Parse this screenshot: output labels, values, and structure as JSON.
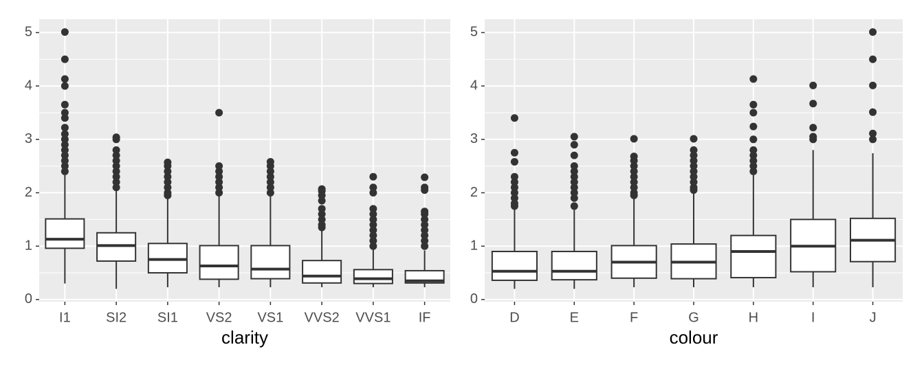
{
  "chart_data": [
    {
      "type": "box",
      "xlabel": "clarity",
      "grid": true,
      "color": "#333333",
      "fill": "#ffffff",
      "ylim": [
        -0.04,
        5.25
      ],
      "yticks": [
        0,
        1,
        2,
        3,
        4,
        5
      ],
      "categories": [
        "I1",
        "SI2",
        "SI1",
        "VS2",
        "VS1",
        "VVS2",
        "VVS1",
        "IF"
      ],
      "boxes": [
        {
          "low": 0.3,
          "q1": 0.96,
          "median": 1.13,
          "q3": 1.51,
          "high": 2.33,
          "outliers": [
            2.4,
            2.5,
            2.6,
            2.7,
            2.8,
            2.9,
            3.0,
            3.1,
            3.22,
            3.4,
            3.5,
            3.65,
            4.0,
            4.13,
            4.5,
            5.01
          ]
        },
        {
          "low": 0.2,
          "q1": 0.72,
          "median": 1.01,
          "q3": 1.25,
          "high": 2.08,
          "outliers": [
            2.1,
            2.2,
            2.3,
            2.4,
            2.5,
            2.6,
            2.7,
            2.8,
            3.0,
            3.04
          ]
        },
        {
          "low": 0.23,
          "q1": 0.5,
          "median": 0.75,
          "q3": 1.05,
          "high": 1.9,
          "outliers": [
            1.95,
            2.0,
            2.1,
            2.2,
            2.3,
            2.4,
            2.5,
            2.57
          ]
        },
        {
          "low": 0.23,
          "q1": 0.38,
          "median": 0.63,
          "q3": 1.01,
          "high": 1.98,
          "outliers": [
            2.0,
            2.1,
            2.2,
            2.3,
            2.4,
            2.5,
            3.5
          ]
        },
        {
          "low": 0.23,
          "q1": 0.39,
          "median": 0.57,
          "q3": 1.01,
          "high": 1.95,
          "outliers": [
            2.0,
            2.1,
            2.2,
            2.3,
            2.4,
            2.5,
            2.58
          ]
        },
        {
          "low": 0.23,
          "q1": 0.31,
          "median": 0.44,
          "q3": 0.73,
          "high": 1.3,
          "outliers": [
            1.35,
            1.4,
            1.5,
            1.6,
            1.7,
            1.85,
            1.95,
            2.03,
            2.07
          ]
        },
        {
          "low": 0.23,
          "q1": 0.3,
          "median": 0.39,
          "q3": 0.56,
          "high": 0.94,
          "outliers": [
            1.0,
            1.1,
            1.2,
            1.3,
            1.4,
            1.5,
            1.6,
            1.7,
            2.0,
            2.1,
            2.3
          ]
        },
        {
          "low": 0.23,
          "q1": 0.31,
          "median": 0.35,
          "q3": 0.54,
          "high": 0.92,
          "outliers": [
            1.0,
            1.1,
            1.2,
            1.3,
            1.4,
            1.5,
            1.6,
            1.65,
            2.05,
            2.1,
            2.29
          ]
        }
      ]
    },
    {
      "type": "box",
      "xlabel": "colour",
      "grid": true,
      "color": "#333333",
      "fill": "#ffffff",
      "ylim": [
        -0.04,
        5.25
      ],
      "yticks": [
        0,
        1,
        2,
        3,
        4,
        5
      ],
      "categories": [
        "D",
        "E",
        "F",
        "G",
        "H",
        "I",
        "J"
      ],
      "boxes": [
        {
          "low": 0.2,
          "q1": 0.36,
          "median": 0.53,
          "q3": 0.9,
          "high": 1.7,
          "outliers": [
            1.75,
            1.8,
            1.9,
            2.0,
            2.1,
            2.2,
            2.3,
            2.58,
            2.75,
            3.4
          ]
        },
        {
          "low": 0.2,
          "q1": 0.37,
          "median": 0.53,
          "q3": 0.9,
          "high": 1.68,
          "outliers": [
            1.75,
            1.9,
            2.0,
            2.1,
            2.2,
            2.3,
            2.4,
            2.5,
            2.7,
            2.9,
            3.05
          ]
        },
        {
          "low": 0.23,
          "q1": 0.4,
          "median": 0.7,
          "q3": 1.01,
          "high": 1.9,
          "outliers": [
            1.95,
            2.0,
            2.1,
            2.2,
            2.3,
            2.4,
            2.5,
            2.6,
            2.68,
            3.01
          ]
        },
        {
          "low": 0.23,
          "q1": 0.39,
          "median": 0.7,
          "q3": 1.04,
          "high": 2.0,
          "outliers": [
            2.05,
            2.1,
            2.2,
            2.3,
            2.4,
            2.5,
            2.6,
            2.7,
            2.8,
            3.01
          ]
        },
        {
          "low": 0.23,
          "q1": 0.41,
          "median": 0.9,
          "q3": 1.2,
          "high": 2.33,
          "outliers": [
            2.4,
            2.5,
            2.6,
            2.7,
            2.8,
            3.0,
            3.24,
            3.5,
            3.65,
            4.13
          ]
        },
        {
          "low": 0.23,
          "q1": 0.52,
          "median": 1.0,
          "q3": 1.5,
          "high": 2.8,
          "outliers": [
            3.0,
            3.05,
            3.22,
            3.67,
            4.01
          ]
        },
        {
          "low": 0.23,
          "q1": 0.71,
          "median": 1.11,
          "q3": 1.52,
          "high": 2.74,
          "outliers": [
            3.0,
            3.11,
            3.51,
            4.01,
            4.5,
            5.01
          ]
        }
      ]
    }
  ]
}
